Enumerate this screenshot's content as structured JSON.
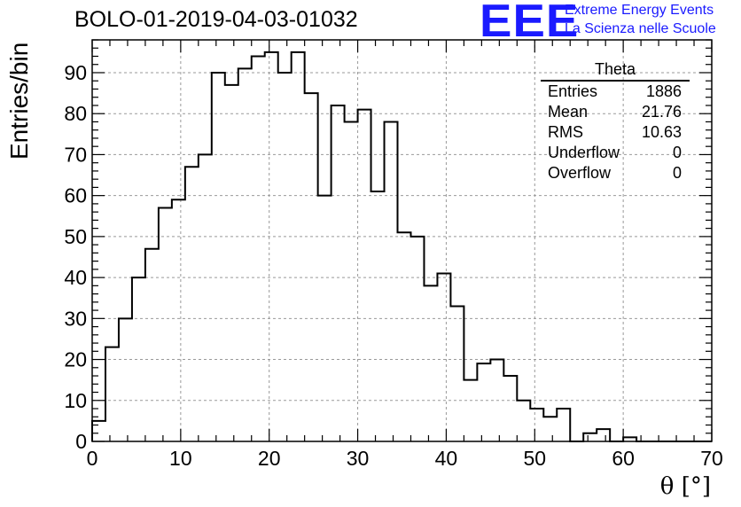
{
  "title": "BOLO-01-2019-04-03-01032",
  "logo": {
    "mark": "EEE",
    "line1": "Extreme Energy Events",
    "line2": "La Scienza nelle Scuole",
    "color": "#1a1aff"
  },
  "stats_box": {
    "title": "Theta",
    "rows": [
      {
        "label": "Entries",
        "value": "1886"
      },
      {
        "label": "Mean",
        "value": "21.76"
      },
      {
        "label": "RMS",
        "value": "10.63"
      },
      {
        "label": "Underflow",
        "value": "0"
      },
      {
        "label": "Overflow",
        "value": "0"
      }
    ]
  },
  "chart_data": {
    "type": "bar",
    "histogram": true,
    "xlabel": "θ [°]",
    "ylabel": "Entries/bin",
    "xlim": [
      0,
      70
    ],
    "ylim": [
      0,
      98
    ],
    "x_ticks": [
      0,
      10,
      20,
      30,
      40,
      50,
      60,
      70
    ],
    "y_ticks": [
      0,
      10,
      20,
      30,
      40,
      50,
      60,
      70,
      80,
      90
    ],
    "grid": true,
    "bin_width": 1.5,
    "bin_edges_start": 0,
    "values": [
      5,
      23,
      30,
      40,
      47,
      57,
      59,
      67,
      70,
      90,
      87,
      91,
      94,
      95,
      90,
      95,
      85,
      60,
      82,
      78,
      81,
      61,
      78,
      51,
      50,
      38,
      41,
      33,
      15,
      19,
      20,
      16,
      10,
      8,
      6,
      8,
      0,
      2,
      3,
      0,
      1,
      0,
      0,
      0,
      0,
      0,
      0
    ]
  }
}
